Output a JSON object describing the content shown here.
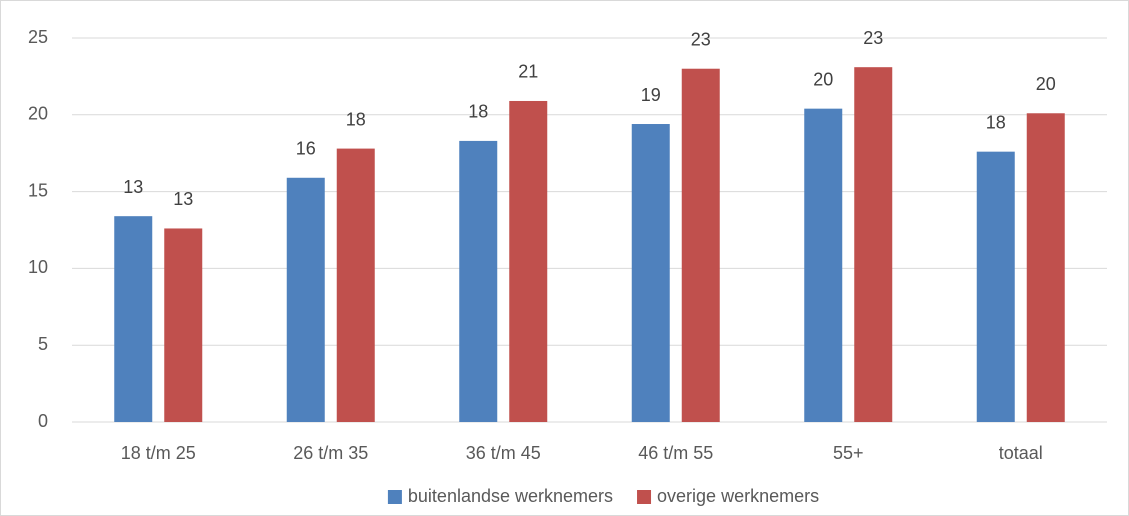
{
  "chart_data": {
    "type": "bar",
    "categories": [
      "18 t/m 25",
      "26 t/m 35",
      "36 t/m 45",
      "46 t/m 55",
      "55+",
      "totaal"
    ],
    "series": [
      {
        "name": "buitenlandse werknemers",
        "color": "#4f81bd",
        "values": [
          13.4,
          15.9,
          18.3,
          19.4,
          20.4,
          17.6
        ],
        "value_labels": [
          "13",
          "16",
          "18",
          "19",
          "20",
          "18"
        ]
      },
      {
        "name": "overige werknemers",
        "color": "#c0504d",
        "values": [
          12.6,
          17.8,
          20.9,
          23.0,
          23.1,
          20.1
        ],
        "value_labels": [
          "13",
          "18",
          "21",
          "23",
          "23",
          "20"
        ]
      }
    ],
    "ylim": [
      0,
      25
    ],
    "yticks": [
      0,
      5,
      10,
      15,
      20,
      25
    ],
    "grid": true,
    "legend": "bottom"
  }
}
